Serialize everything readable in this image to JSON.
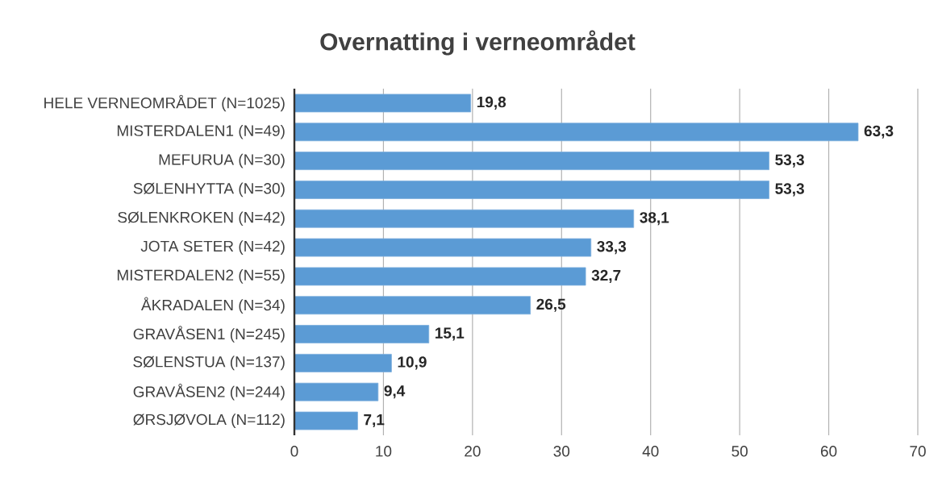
{
  "chart_data": {
    "type": "bar",
    "orientation": "horizontal",
    "title": "Overnatting i verneområdet",
    "categories": [
      "HELE VERNEOMRÅDET (N=1025)",
      "MISTERDALEN1  (N=49)",
      "MEFURUA  (N=30)",
      "SØLENHYTTA  (N=30)",
      "SØLENKROKEN  (N=42)",
      "JOTA SETER  (N=42)",
      "MISTERDALEN2  (N=55)",
      "ÅKRADALEN (N=34)",
      "GRAVÅSEN1 (N=245)",
      "SØLENSTUA  (N=137)",
      "GRAVÅSEN2  (N=244)",
      "ØRSJØVOLA  (N=112)"
    ],
    "values": [
      19.8,
      63.3,
      53.3,
      53.3,
      38.1,
      33.3,
      32.7,
      26.5,
      15.1,
      10.9,
      9.4,
      7.1
    ],
    "value_labels": [
      "19,8",
      "63,3",
      "53,3",
      "53,3",
      "38,1",
      "33,3",
      "32,7",
      "26,5",
      "15,1",
      "10,9",
      "9,4",
      "7,1"
    ],
    "color": "#5b9bd5",
    "xlim": [
      0,
      70
    ],
    "xticks": [
      0,
      10,
      20,
      30,
      40,
      50,
      60,
      70
    ],
    "grid": "x"
  }
}
